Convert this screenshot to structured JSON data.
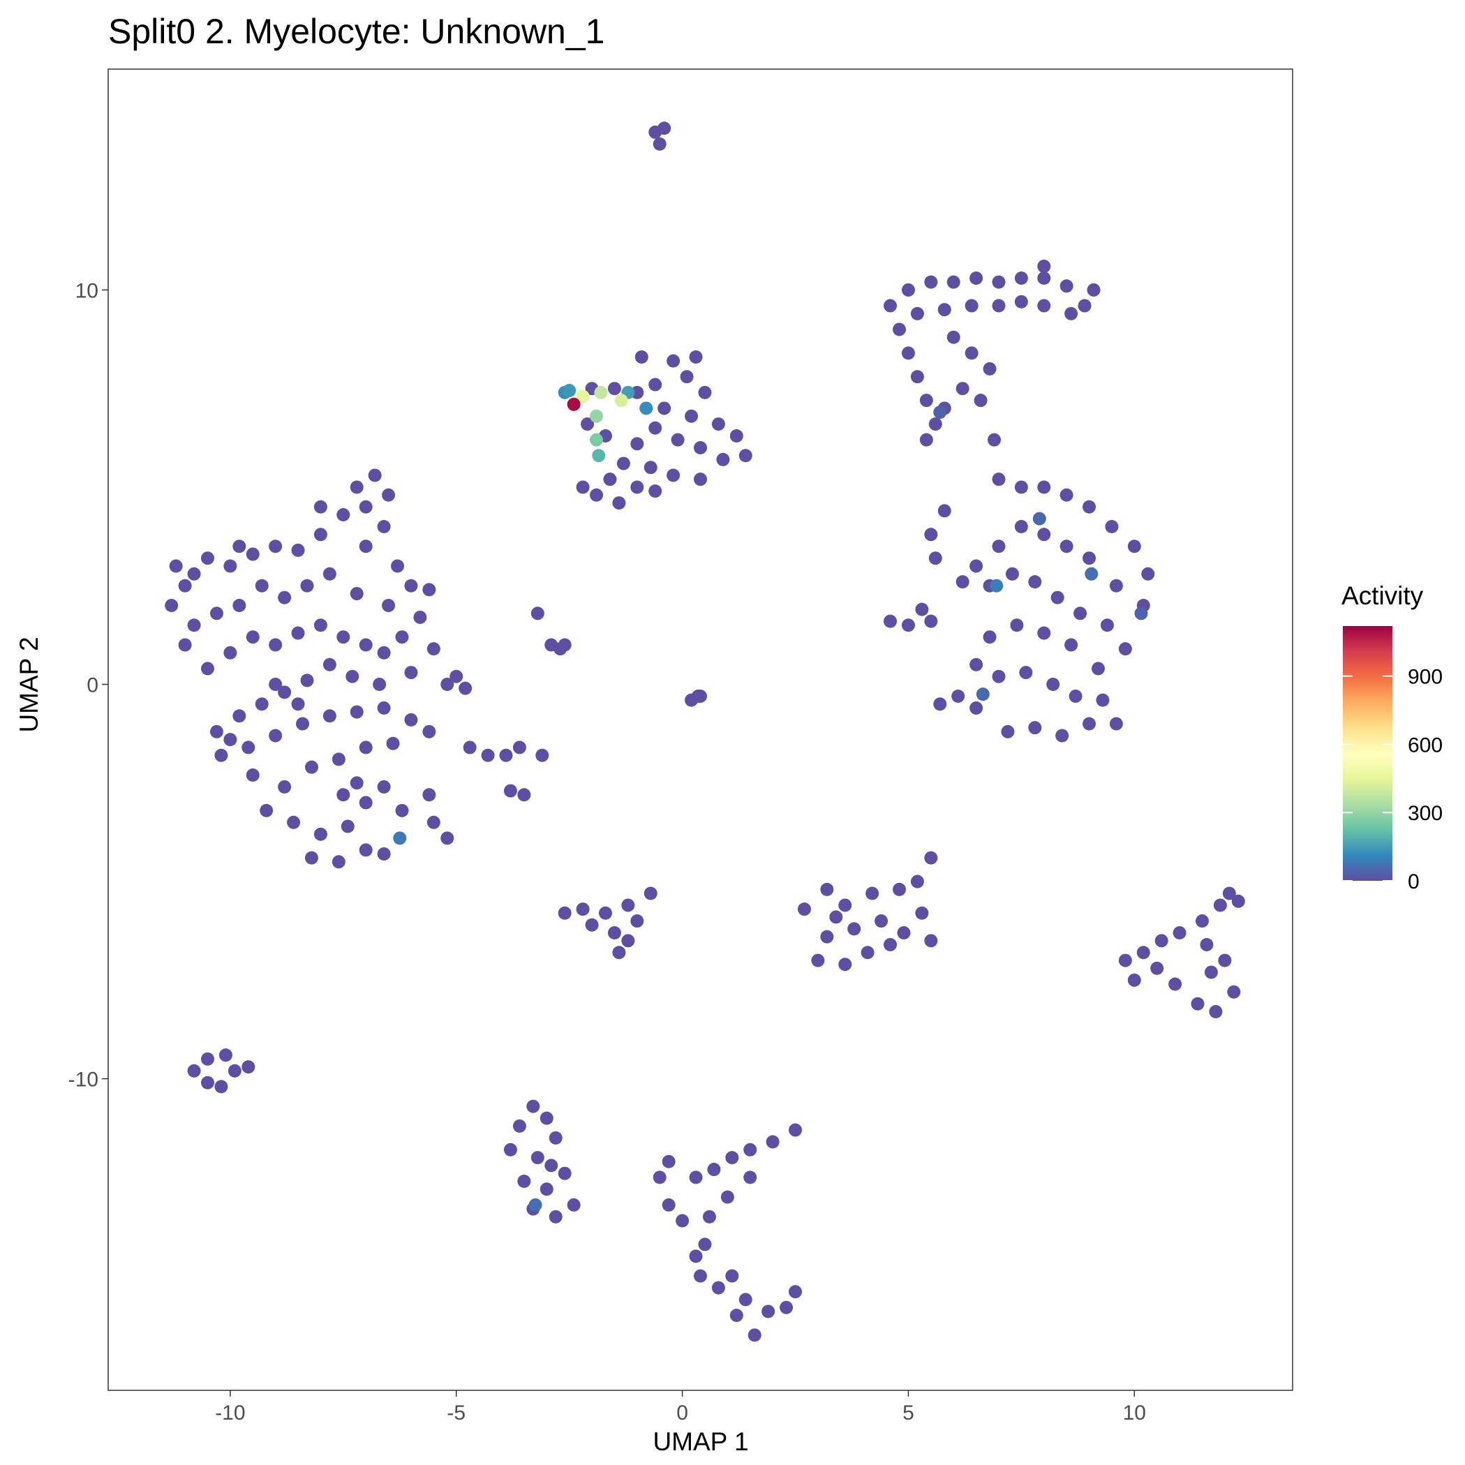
{
  "chart_data": {
    "type": "scatter",
    "title": "Split0 2. Myelocyte: Unknown_1",
    "x_label": "UMAP 1",
    "y_label": "UMAP 2",
    "xlim": [
      -12.7,
      13.5
    ],
    "ylim": [
      -17.9,
      15.6
    ],
    "xticks": [
      -10,
      -5,
      0,
      5,
      10
    ],
    "yticks": [
      -10,
      0,
      10
    ],
    "x": [
      -0.6,
      -0.4,
      -0.5,
      -2.0,
      -1.5,
      -1.0,
      -0.6,
      -0.2,
      0.3,
      -0.9,
      0.1,
      0.5,
      -0.4,
      0.2,
      0.8,
      1.2,
      1.4,
      0.9,
      0.4,
      -0.1,
      -0.6,
      -1.0,
      -1.3,
      -0.7,
      -0.2,
      0.4,
      -1.0,
      -1.6,
      -2.2,
      -1.9,
      -1.4,
      -0.6,
      -2.1,
      -1.7,
      -11.2,
      -11.3,
      -10.8,
      -10.5,
      -10.0,
      -9.5,
      -9.0,
      -8.5,
      -8.0,
      -7.5,
      -7.2,
      -6.8,
      -6.5,
      -6.6,
      -7.0,
      -6.3,
      -6.0,
      -5.6,
      -6.5,
      -7.2,
      -7.8,
      -8.3,
      -8.8,
      -9.3,
      -9.8,
      -10.3,
      -10.8,
      -11.0,
      -10.5,
      -10.0,
      -9.5,
      -9.0,
      -8.5,
      -8.0,
      -7.5,
      -7.0,
      -6.6,
      -6.2,
      -6.0,
      -6.7,
      -7.3,
      -7.8,
      -8.3,
      -8.8,
      -9.3,
      -9.8,
      -10.3,
      -10.2,
      -9.6,
      -9.0,
      -8.4,
      -7.8,
      -7.2,
      -6.6,
      -6.0,
      -6.4,
      -7.0,
      -7.6,
      -8.2,
      -8.8,
      -9.2,
      -8.6,
      -8.0,
      -7.4,
      -7.0,
      -7.6,
      -8.2,
      -7.0,
      -7.2,
      -6.6,
      -6.2,
      -6.6,
      -5.6,
      -5.2,
      -5.5,
      -5.6,
      -5.2,
      -5.0,
      -4.8,
      -5.5,
      -5.8,
      -9.5,
      -10.0,
      -8.0,
      -7.0,
      -9.8,
      -11.0,
      -8.5,
      -7.5,
      -9.0,
      -3.2,
      -2.9,
      -2.7,
      -2.6,
      -4.7,
      -4.3,
      -3.9,
      -3.6,
      -3.1,
      -3.8,
      -3.5,
      0.2,
      0.35,
      0.4,
      -2.6,
      -2.2,
      -1.7,
      -1.2,
      -0.7,
      -1.0,
      -1.5,
      -2.0,
      -1.4,
      -1.2,
      2.7,
      3.2,
      3.6,
      4.2,
      4.8,
      5.2,
      5.5,
      5.3,
      5.5,
      4.9,
      4.4,
      3.8,
      3.2,
      3.0,
      3.6,
      4.1,
      4.6,
      3.4,
      9.8,
      10.2,
      10.5,
      10.0,
      10.6,
      11.0,
      11.5,
      11.9,
      12.1,
      12.3,
      11.6,
      12.0,
      12.2,
      11.8,
      11.4,
      11.7,
      10.9,
      -10.8,
      -10.5,
      -10.2,
      -9.9,
      -10.5,
      -9.6,
      -10.1,
      -3.3,
      -3.6,
      -3.0,
      -3.8,
      -3.2,
      -2.8,
      -2.6,
      -3.5,
      -3.0,
      -2.4,
      -2.8,
      -3.3,
      -2.9,
      -0.3,
      -0.5,
      -0.3,
      0.0,
      0.3,
      0.7,
      1.1,
      1.5,
      2.0,
      2.5,
      1.5,
      1.0,
      0.6,
      0.5,
      0.3,
      0.4,
      0.8,
      1.1,
      1.4,
      1.9,
      2.3,
      2.5,
      1.6,
      1.2,
      4.6,
      5.0,
      5.5,
      6.0,
      6.5,
      7.0,
      7.5,
      8.0,
      8.5,
      8.9,
      8.6,
      8.0,
      7.5,
      7.0,
      6.4,
      5.8,
      5.2,
      4.8,
      5.0,
      5.2,
      5.4,
      5.8,
      6.2,
      6.6,
      6.8,
      6.4,
      6.0,
      5.6,
      5.4,
      6.9,
      7.0,
      7.5,
      8.0,
      8.5,
      9.0,
      9.5,
      10.0,
      10.3,
      10.2,
      9.6,
      9.0,
      8.5,
      8.0,
      7.5,
      7.0,
      6.5,
      6.2,
      6.8,
      7.3,
      7.8,
      8.3,
      8.8,
      9.4,
      9.8,
      9.2,
      8.6,
      8.0,
      7.4,
      6.8,
      6.5,
      7.0,
      7.6,
      8.2,
      8.7,
      9.3,
      9.6,
      9.0,
      8.4,
      7.8,
      7.2,
      6.5,
      5.7,
      6.1,
      5.8,
      5.5,
      5.6,
      4.6,
      5.0,
      5.5,
      5.3,
      8.0,
      9.1,
      -6.25,
      -3.25,
      6.95,
      9.05,
      7.9,
      6.65,
      5.7,
      10.15,
      -0.8,
      -2.6,
      -1.2,
      -2.5,
      -1.85,
      -1.9,
      -1.9,
      -1.8,
      -1.35,
      -2.2,
      -2.4
    ],
    "y": [
      14.0,
      14.1,
      13.7,
      7.5,
      7.5,
      7.4,
      7.6,
      8.2,
      8.3,
      8.3,
      7.8,
      7.4,
      7.0,
      6.8,
      6.6,
      6.3,
      5.8,
      5.7,
      6.0,
      6.2,
      6.5,
      6.1,
      5.6,
      5.5,
      5.3,
      5.2,
      5.0,
      5.2,
      5.0,
      4.8,
      4.6,
      4.9,
      6.6,
      6.3,
      3.0,
      2.0,
      2.8,
      3.2,
      3.0,
      3.3,
      3.5,
      3.4,
      3.8,
      4.3,
      5.0,
      5.3,
      4.8,
      4.0,
      3.5,
      3.0,
      2.5,
      2.4,
      2.0,
      2.3,
      2.8,
      2.5,
      2.2,
      2.5,
      2.0,
      1.8,
      1.5,
      1.0,
      0.4,
      0.8,
      1.2,
      1.0,
      1.3,
      1.5,
      1.2,
      1.0,
      0.8,
      1.2,
      0.3,
      0.0,
      0.2,
      0.5,
      0.1,
      -0.2,
      -0.5,
      -0.8,
      -1.2,
      -1.8,
      -1.6,
      -1.3,
      -1.0,
      -0.8,
      -0.7,
      -0.6,
      -0.9,
      -1.5,
      -1.6,
      -1.9,
      -2.1,
      -2.6,
      -3.2,
      -3.5,
      -3.8,
      -3.6,
      -4.2,
      -4.5,
      -4.4,
      -3.0,
      -2.5,
      -2.6,
      -3.2,
      -4.3,
      -1.2,
      -3.9,
      -3.5,
      -2.8,
      0.0,
      0.2,
      -0.1,
      0.9,
      1.7,
      -2.3,
      -1.4,
      4.5,
      4.5,
      3.5,
      2.5,
      -0.5,
      -2.8,
      0.0,
      1.8,
      1.0,
      0.9,
      1.0,
      -1.6,
      -1.8,
      -1.8,
      -1.6,
      -1.8,
      -2.7,
      -2.8,
      -0.4,
      -0.3,
      -0.3,
      -5.8,
      -5.7,
      -5.8,
      -5.6,
      -5.3,
      -6.0,
      -6.3,
      -6.1,
      -6.8,
      -6.5,
      -5.7,
      -5.2,
      -5.6,
      -5.3,
      -5.2,
      -5.0,
      -4.4,
      -5.8,
      -6.5,
      -6.3,
      -6.0,
      -6.2,
      -6.4,
      -7.0,
      -7.1,
      -6.8,
      -6.6,
      -5.9,
      -7.0,
      -6.8,
      -7.2,
      -7.5,
      -6.5,
      -6.3,
      -6.0,
      -5.6,
      -5.3,
      -5.5,
      -6.6,
      -7.0,
      -7.8,
      -8.3,
      -8.1,
      -7.3,
      -7.6,
      -9.8,
      -9.5,
      -10.2,
      -9.8,
      -10.1,
      -9.7,
      -9.4,
      -10.7,
      -11.2,
      -11.0,
      -11.8,
      -12.0,
      -11.5,
      -12.4,
      -12.6,
      -12.8,
      -13.2,
      -13.5,
      -13.3,
      -12.2,
      -12.1,
      -12.5,
      -13.2,
      -13.6,
      -12.5,
      -12.3,
      -12.0,
      -11.8,
      -11.6,
      -11.3,
      -12.5,
      -13.0,
      -13.5,
      -14.2,
      -14.5,
      -15.0,
      -15.3,
      -15.0,
      -15.6,
      -15.9,
      -15.8,
      -15.4,
      -16.5,
      -16.0,
      9.6,
      10.0,
      10.2,
      10.2,
      10.3,
      10.2,
      10.3,
      10.3,
      10.1,
      9.6,
      9.4,
      9.6,
      9.7,
      9.6,
      9.6,
      9.5,
      9.4,
      9.0,
      8.4,
      7.8,
      7.2,
      7.0,
      7.5,
      7.2,
      8.0,
      8.4,
      8.8,
      6.6,
      6.2,
      6.2,
      5.2,
      5.0,
      5.0,
      4.8,
      4.5,
      4.0,
      3.5,
      2.8,
      2.0,
      2.5,
      3.2,
      3.5,
      3.8,
      4.0,
      3.5,
      3.0,
      2.6,
      2.5,
      2.8,
      2.6,
      2.2,
      1.8,
      1.5,
      0.9,
      0.4,
      1.0,
      1.3,
      1.5,
      1.2,
      0.5,
      0.2,
      0.3,
      0.0,
      -0.3,
      -0.4,
      -1.0,
      -1.0,
      -1.3,
      -1.1,
      -1.2,
      -0.6,
      -0.5,
      -0.3,
      4.4,
      3.8,
      3.2,
      1.6,
      1.5,
      1.6,
      1.9,
      10.6,
      10.0,
      -3.9,
      -13.2,
      2.5,
      2.8,
      4.2,
      -0.25,
      6.9,
      1.8,
      7.0,
      7.4,
      7.4,
      7.45,
      5.8,
      6.2,
      6.8,
      7.4,
      7.2,
      7.3,
      7.1
    ],
    "activity": [
      0,
      0,
      0,
      0,
      0,
      0,
      0,
      0,
      0,
      0,
      0,
      0,
      0,
      0,
      0,
      0,
      0,
      0,
      0,
      0,
      0,
      0,
      0,
      0,
      0,
      0,
      0,
      0,
      0,
      0,
      0,
      0,
      0,
      0,
      0,
      0,
      0,
      0,
      0,
      0,
      0,
      0,
      0,
      0,
      0,
      0,
      0,
      0,
      0,
      0,
      0,
      0,
      0,
      0,
      0,
      0,
      0,
      0,
      0,
      0,
      0,
      0,
      0,
      0,
      0,
      0,
      0,
      0,
      0,
      0,
      0,
      0,
      0,
      0,
      0,
      0,
      0,
      0,
      0,
      0,
      0,
      0,
      0,
      0,
      0,
      0,
      0,
      0,
      0,
      0,
      0,
      0,
      0,
      0,
      0,
      0,
      0,
      0,
      0,
      0,
      0,
      0,
      0,
      0,
      0,
      0,
      0,
      0,
      0,
      0,
      0,
      0,
      0,
      0,
      0,
      0,
      0,
      0,
      0,
      0,
      0,
      0,
      0,
      0,
      0,
      0,
      0,
      0,
      0,
      0,
      0,
      0,
      0,
      0,
      0,
      0,
      0,
      0,
      0,
      0,
      0,
      0,
      0,
      0,
      0,
      0,
      0,
      0,
      0,
      0,
      0,
      0,
      0,
      0,
      0,
      0,
      0,
      0,
      0,
      0,
      0,
      0,
      0,
      0,
      0,
      0,
      0,
      0,
      0,
      0,
      0,
      0,
      0,
      0,
      0,
      0,
      0,
      0,
      0,
      0,
      0,
      0,
      0,
      0,
      0,
      0,
      0,
      0,
      0,
      0,
      0,
      0,
      0,
      0,
      0,
      0,
      0,
      0,
      0,
      0,
      0,
      0,
      0,
      0,
      0,
      0,
      0,
      0,
      0,
      0,
      0,
      0,
      0,
      0,
      0,
      0,
      0,
      0,
      0,
      0,
      0,
      0,
      0,
      0,
      0,
      0,
      0,
      0,
      0,
      0,
      0,
      0,
      0,
      0,
      0,
      0,
      0,
      0,
      0,
      0,
      0,
      0,
      0,
      0,
      0,
      0,
      0,
      0,
      0,
      0,
      0,
      0,
      0,
      0,
      0,
      0,
      0,
      0,
      0,
      0,
      0,
      0,
      0,
      0,
      0,
      0,
      0,
      0,
      0,
      0,
      0,
      0,
      0,
      0,
      0,
      0,
      0,
      0,
      0,
      0,
      0,
      0,
      0,
      0,
      0,
      0,
      0,
      0,
      0,
      0,
      0,
      0,
      0,
      0,
      0,
      0,
      0,
      0,
      0,
      0,
      0,
      0,
      0,
      0,
      0,
      0,
      0,
      0,
      0,
      80,
      60,
      90,
      60,
      50,
      50,
      40,
      40,
      120,
      120,
      150,
      140,
      200,
      260,
      300,
      380,
      420,
      450,
      1100
    ],
    "colorbar": {
      "title": "Activity",
      "lim": [
        0,
        1120
      ],
      "ticks": [
        0,
        300,
        600,
        900
      ],
      "colors": [
        "#5E4FA2",
        "#3288BD",
        "#66C2A5",
        "#ABDDA4",
        "#E6F598",
        "#FFFFBF",
        "#FEE08B",
        "#FDAE61",
        "#F46D43",
        "#D53E4F",
        "#9E0142"
      ]
    }
  }
}
